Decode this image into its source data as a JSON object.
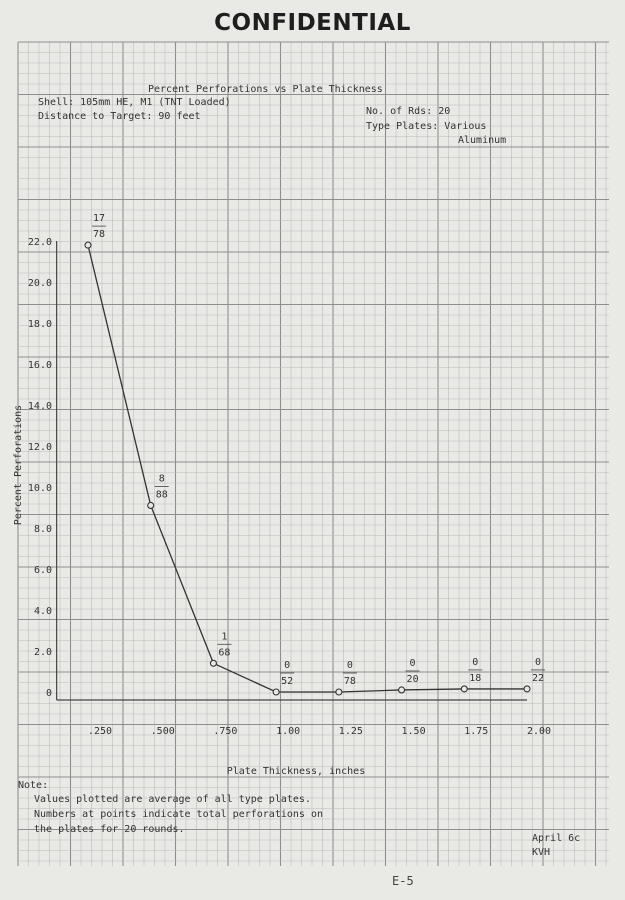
{
  "stamp": "CONFIDENTIAL",
  "header": {
    "title": "Percent Perforations vs Plate Thickness",
    "shell": "Shell:  105mm HE, M1 (TNT Loaded)",
    "distance": "Distance to Target:  90 feet",
    "rounds": "No. of Rds:  20",
    "plates": "Type Plates:  Various",
    "plates2": "Aluminum"
  },
  "notes": {
    "heading": "Note:",
    "line1": "Values plotted are average of all type plates.",
    "line2": "Numbers at points indicate total perforations on",
    "line3": "the plates for 20 rounds."
  },
  "signoff": {
    "date": "April 6c",
    "initials": "KVH"
  },
  "page_number": "E-5",
  "chart_data": {
    "type": "line",
    "title": "Percent Perforations vs Plate Thickness",
    "xlabel": "Plate Thickness, inches",
    "ylabel": "Percent Perforations",
    "x_ticks": [
      ".250",
      ".500",
      ".750",
      "1.00",
      "1.25",
      "1.50",
      "1.75",
      "2.00"
    ],
    "y_ticks": [
      "0",
      "2.0",
      "4.0",
      "6.0",
      "8.0",
      "10.0",
      "12.0",
      "14.0",
      "16.0",
      "18.0",
      "20.0",
      "22.0"
    ],
    "xlim": [
      0.125,
      2.0
    ],
    "ylim": [
      0,
      22
    ],
    "grid": true,
    "series": [
      {
        "x": [
          0.25,
          0.5,
          0.75,
          1.0,
          1.25,
          1.5,
          1.75,
          2.0
        ],
        "y": [
          21.8,
          9.1,
          1.4,
          0,
          0,
          0.1,
          0.15,
          0.15
        ],
        "labels": [
          {
            "num": "17",
            "den": "78"
          },
          {
            "num": "8",
            "den": "88"
          },
          {
            "num": "1",
            "den": "68"
          },
          {
            "num": "0",
            "den": "52"
          },
          {
            "num": "0",
            "den": "78"
          },
          {
            "num": "0",
            "den": "20"
          },
          {
            "num": "0",
            "den": "18"
          },
          {
            "num": "0",
            "den": "22"
          }
        ]
      }
    ]
  }
}
